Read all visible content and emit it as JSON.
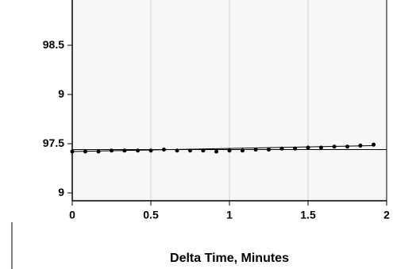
{
  "chart_data": {
    "type": "scatter",
    "x_label": "Delta Time, Minutes",
    "x": [
      0,
      0.083,
      0.167,
      0.25,
      0.333,
      0.417,
      0.5,
      0.583,
      0.667,
      0.75,
      0.833,
      0.917,
      1.0,
      1.083,
      1.167,
      1.25,
      1.333,
      1.417,
      1.5,
      1.583,
      1.667,
      1.75,
      1.833,
      1.917
    ],
    "values": [
      97.42,
      97.42,
      97.42,
      97.43,
      97.43,
      97.43,
      97.43,
      97.44,
      97.43,
      97.43,
      97.43,
      97.42,
      97.43,
      97.43,
      97.44,
      97.44,
      97.45,
      97.45,
      97.46,
      97.46,
      97.47,
      97.47,
      97.48,
      97.49
    ],
    "color": "#000000",
    "trend_line": {
      "x": [
        0,
        1.917
      ],
      "values": [
        97.42,
        97.48
      ]
    },
    "reference_line": 97.44,
    "xlim": [
      0,
      2
    ],
    "xticks": [
      0,
      0.5,
      1,
      1.5,
      2
    ],
    "ylim": [
      96.92,
      98.96
    ],
    "yticks": [
      {
        "value": 97,
        "label": "9"
      },
      97.5,
      {
        "value": 98,
        "label": "9"
      },
      98.5
    ],
    "grid": true
  }
}
